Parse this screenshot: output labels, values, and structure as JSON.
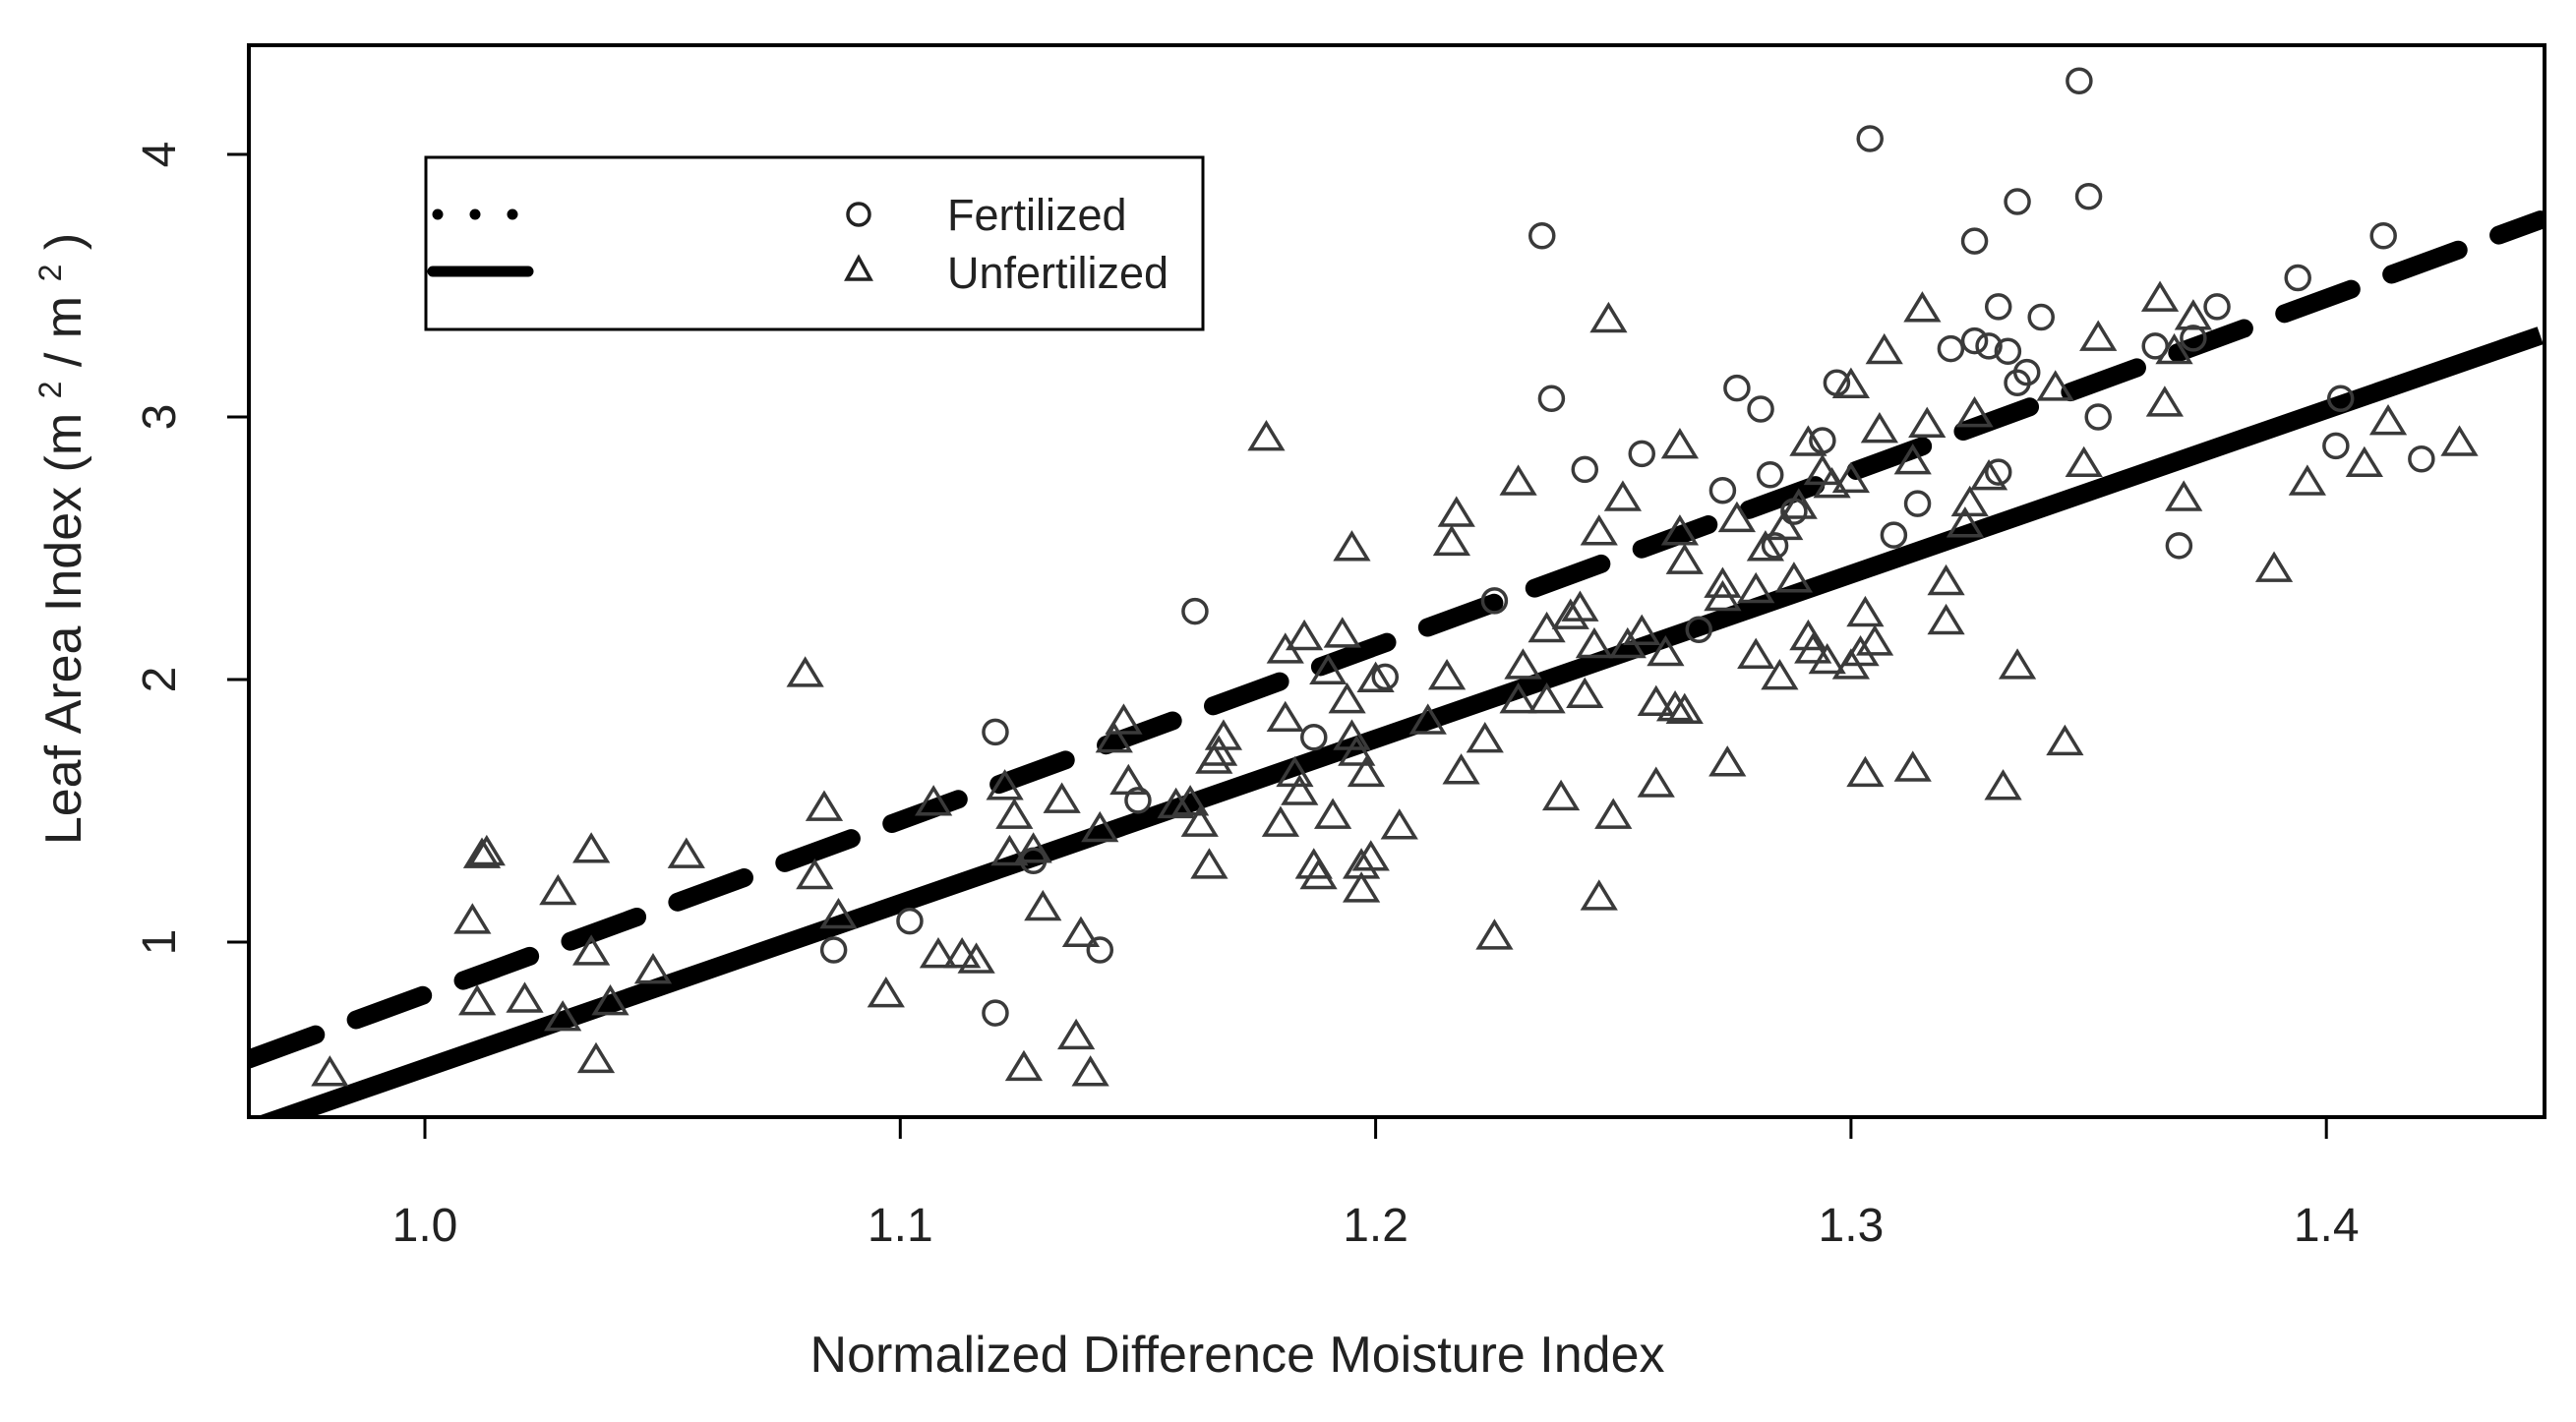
{
  "chart_data": {
    "type": "scatter",
    "title": "",
    "xlabel": "Normalized Difference Moisture Index",
    "ylabel": "Leaf Area Index",
    "ylabel_unit": {
      "open": "(m",
      "sup1": "2",
      "mid": " / m",
      "sup2": "2",
      "close": ")"
    },
    "xlim": [
      0.963,
      1.445
    ],
    "ylim": [
      0.33,
      4.42
    ],
    "x_ticks": [
      "1.0",
      "1.1",
      "1.2",
      "1.3",
      "1.4"
    ],
    "y_ticks": [
      "1",
      "2",
      "3",
      "4"
    ],
    "legend": {
      "position": "top-left",
      "entries": [
        {
          "label": "Fertilized",
          "marker": "circle",
          "line": "dotted"
        },
        {
          "label": "Unfertilized",
          "marker": "triangle",
          "line": "solid"
        }
      ]
    },
    "fit_lines": [
      {
        "name": "Fertilized fit",
        "style": "dashed",
        "intercept": -5.83,
        "slope": 6.63,
        "x_range": [
          0.963,
          1.445
        ]
      },
      {
        "name": "Unfertilized fit",
        "style": "solid",
        "intercept": -5.75,
        "slope": 6.27,
        "x_range": [
          0.963,
          1.445
        ]
      }
    ],
    "series": [
      {
        "name": "Fertilized",
        "marker": "circle",
        "points": [
          [
            1.086,
            0.97
          ],
          [
            1.102,
            1.08
          ],
          [
            1.12,
            1.8
          ],
          [
            1.12,
            0.73
          ],
          [
            1.128,
            1.31
          ],
          [
            1.142,
            0.97
          ],
          [
            1.15,
            1.54
          ],
          [
            1.162,
            2.26
          ],
          [
            1.187,
            1.78
          ],
          [
            1.202,
            2.01
          ],
          [
            1.225,
            2.3
          ],
          [
            1.235,
            3.69
          ],
          [
            1.237,
            3.07
          ],
          [
            1.244,
            2.8
          ],
          [
            1.256,
            2.86
          ],
          [
            1.268,
            2.19
          ],
          [
            1.273,
            2.72
          ],
          [
            1.276,
            3.11
          ],
          [
            1.281,
            3.03
          ],
          [
            1.283,
            2.78
          ],
          [
            1.284,
            2.51
          ],
          [
            1.288,
            2.64
          ],
          [
            1.294,
            2.91
          ],
          [
            1.297,
            3.13
          ],
          [
            1.304,
            4.06
          ],
          [
            1.309,
            2.55
          ],
          [
            1.314,
            2.67
          ],
          [
            1.321,
            3.26
          ],
          [
            1.326,
            3.67
          ],
          [
            1.326,
            3.29
          ],
          [
            1.329,
            3.27
          ],
          [
            1.331,
            3.42
          ],
          [
            1.331,
            2.79
          ],
          [
            1.333,
            3.25
          ],
          [
            1.335,
            3.82
          ],
          [
            1.335,
            3.13
          ],
          [
            1.337,
            3.17
          ],
          [
            1.34,
            3.38
          ],
          [
            1.348,
            4.28
          ],
          [
            1.35,
            3.84
          ],
          [
            1.352,
            3.0
          ],
          [
            1.364,
            3.27
          ],
          [
            1.369,
            2.51
          ],
          [
            1.372,
            3.3
          ],
          [
            1.377,
            3.42
          ],
          [
            1.394,
            3.53
          ],
          [
            1.402,
            2.89
          ],
          [
            1.403,
            3.07
          ],
          [
            1.412,
            3.69
          ],
          [
            1.42,
            2.84
          ]
        ]
      },
      {
        "name": "Unfertilized",
        "marker": "triangle",
        "points": [
          [
            0.98,
            0.5
          ],
          [
            1.01,
            1.08
          ],
          [
            1.011,
            0.77
          ],
          [
            1.012,
            1.33
          ],
          [
            1.013,
            1.34
          ],
          [
            1.021,
            0.78
          ],
          [
            1.028,
            1.19
          ],
          [
            1.029,
            0.71
          ],
          [
            1.035,
            0.96
          ],
          [
            1.035,
            1.35
          ],
          [
            1.036,
            0.55
          ],
          [
            1.039,
            0.77
          ],
          [
            1.048,
            0.89
          ],
          [
            1.055,
            1.33
          ],
          [
            1.08,
            2.02
          ],
          [
            1.082,
            1.25
          ],
          [
            1.084,
            1.51
          ],
          [
            1.087,
            1.1
          ],
          [
            1.097,
            0.8
          ],
          [
            1.107,
            1.53
          ],
          [
            1.108,
            0.95
          ],
          [
            1.113,
            0.95
          ],
          [
            1.116,
            0.93
          ],
          [
            1.122,
            1.59
          ],
          [
            1.123,
            1.34
          ],
          [
            1.124,
            1.48
          ],
          [
            1.126,
            0.52
          ],
          [
            1.128,
            1.35
          ],
          [
            1.13,
            1.13
          ],
          [
            1.134,
            1.54
          ],
          [
            1.137,
            0.64
          ],
          [
            1.138,
            1.03
          ],
          [
            1.14,
            0.5
          ],
          [
            1.142,
            1.43
          ],
          [
            1.145,
            1.77
          ],
          [
            1.147,
            1.84
          ],
          [
            1.148,
            1.61
          ],
          [
            1.158,
            1.52
          ],
          [
            1.161,
            1.53
          ],
          [
            1.163,
            1.45
          ],
          [
            1.165,
            1.29
          ],
          [
            1.166,
            1.69
          ],
          [
            1.167,
            1.72
          ],
          [
            1.168,
            1.78
          ],
          [
            1.177,
            2.92
          ],
          [
            1.18,
            1.45
          ],
          [
            1.181,
            1.85
          ],
          [
            1.181,
            2.11
          ],
          [
            1.183,
            1.64
          ],
          [
            1.184,
            1.57
          ],
          [
            1.185,
            2.16
          ],
          [
            1.187,
            1.29
          ],
          [
            1.188,
            1.25
          ],
          [
            1.19,
            2.03
          ],
          [
            1.191,
            1.48
          ],
          [
            1.193,
            2.17
          ],
          [
            1.194,
            1.92
          ],
          [
            1.195,
            1.78
          ],
          [
            1.195,
            2.5
          ],
          [
            1.196,
            1.72
          ],
          [
            1.197,
            1.29
          ],
          [
            1.197,
            1.2
          ],
          [
            1.198,
            1.64
          ],
          [
            1.199,
            1.32
          ],
          [
            1.2,
            2.0
          ],
          [
            1.205,
            1.44
          ],
          [
            1.211,
            1.84
          ],
          [
            1.215,
            2.01
          ],
          [
            1.216,
            2.52
          ],
          [
            1.217,
            2.63
          ],
          [
            1.218,
            1.65
          ],
          [
            1.223,
            1.77
          ],
          [
            1.225,
            1.02
          ],
          [
            1.23,
            1.92
          ],
          [
            1.23,
            2.75
          ],
          [
            1.231,
            2.05
          ],
          [
            1.236,
            1.92
          ],
          [
            1.236,
            2.19
          ],
          [
            1.239,
            1.55
          ],
          [
            1.241,
            2.24
          ],
          [
            1.243,
            2.27
          ],
          [
            1.244,
            1.94
          ],
          [
            1.246,
            2.13
          ],
          [
            1.247,
            2.56
          ],
          [
            1.247,
            1.17
          ],
          [
            1.249,
            3.37
          ],
          [
            1.25,
            1.48
          ],
          [
            1.252,
            2.69
          ],
          [
            1.253,
            2.13
          ],
          [
            1.256,
            2.18
          ],
          [
            1.259,
            1.6
          ],
          [
            1.259,
            1.91
          ],
          [
            1.261,
            2.1
          ],
          [
            1.263,
            1.89
          ],
          [
            1.264,
            2.56
          ],
          [
            1.264,
            2.89
          ],
          [
            1.265,
            1.88
          ],
          [
            1.265,
            2.45
          ],
          [
            1.273,
            2.31
          ],
          [
            1.273,
            2.36
          ],
          [
            1.274,
            1.68
          ],
          [
            1.276,
            2.61
          ],
          [
            1.28,
            2.09
          ],
          [
            1.28,
            2.34
          ],
          [
            1.282,
            2.5
          ],
          [
            1.285,
            2.01
          ],
          [
            1.286,
            2.58
          ],
          [
            1.288,
            2.38
          ],
          [
            1.289,
            2.66
          ],
          [
            1.291,
            2.16
          ],
          [
            1.291,
            2.9
          ],
          [
            1.292,
            2.11
          ],
          [
            1.294,
            2.79
          ],
          [
            1.295,
            2.07
          ],
          [
            1.296,
            2.74
          ],
          [
            1.3,
            2.76
          ],
          [
            1.3,
            2.05
          ],
          [
            1.3,
            3.12
          ],
          [
            1.302,
            2.1
          ],
          [
            1.303,
            1.64
          ],
          [
            1.303,
            2.25
          ],
          [
            1.305,
            2.14
          ],
          [
            1.306,
            2.95
          ],
          [
            1.307,
            3.25
          ],
          [
            1.313,
            2.83
          ],
          [
            1.313,
            1.66
          ],
          [
            1.316,
            2.97
          ],
          [
            1.315,
            3.41
          ],
          [
            1.32,
            2.22
          ],
          [
            1.32,
            2.37
          ],
          [
            1.324,
            2.59
          ],
          [
            1.325,
            2.67
          ],
          [
            1.326,
            3.01
          ],
          [
            1.329,
            2.77
          ],
          [
            1.332,
            1.59
          ],
          [
            1.335,
            2.05
          ],
          [
            1.343,
            3.11
          ],
          [
            1.345,
            1.76
          ],
          [
            1.349,
            2.82
          ],
          [
            1.352,
            3.3
          ],
          [
            1.365,
            3.45
          ],
          [
            1.366,
            3.05
          ],
          [
            1.368,
            3.25
          ],
          [
            1.37,
            2.69
          ],
          [
            1.372,
            3.38
          ],
          [
            1.389,
            2.42
          ],
          [
            1.396,
            2.75
          ],
          [
            1.408,
            2.82
          ],
          [
            1.413,
            2.98
          ],
          [
            1.428,
            2.9
          ]
        ]
      }
    ]
  }
}
